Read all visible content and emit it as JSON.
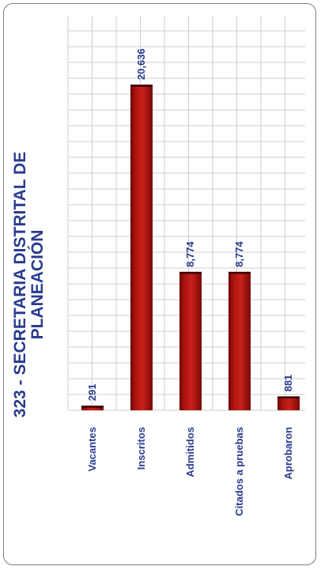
{
  "chart_data": {
    "type": "bar",
    "title_lines": [
      "323 - SECRETARIA DISTRITAL DE",
      "PLANEACIÓN"
    ],
    "categories": [
      "Vacantes",
      "Inscritos",
      "Admitidos",
      "Citados a pruebas",
      "Aprobaron"
    ],
    "values": [
      291,
      20636,
      8774,
      8774,
      881
    ],
    "value_labels": [
      "291",
      "20,636",
      "8,774",
      "8,774",
      "881"
    ],
    "ylim": [
      0,
      25000
    ],
    "grid": true,
    "bar_color": "#a0120f",
    "text_color": "#2a3b8f",
    "orientation": "rotated"
  }
}
